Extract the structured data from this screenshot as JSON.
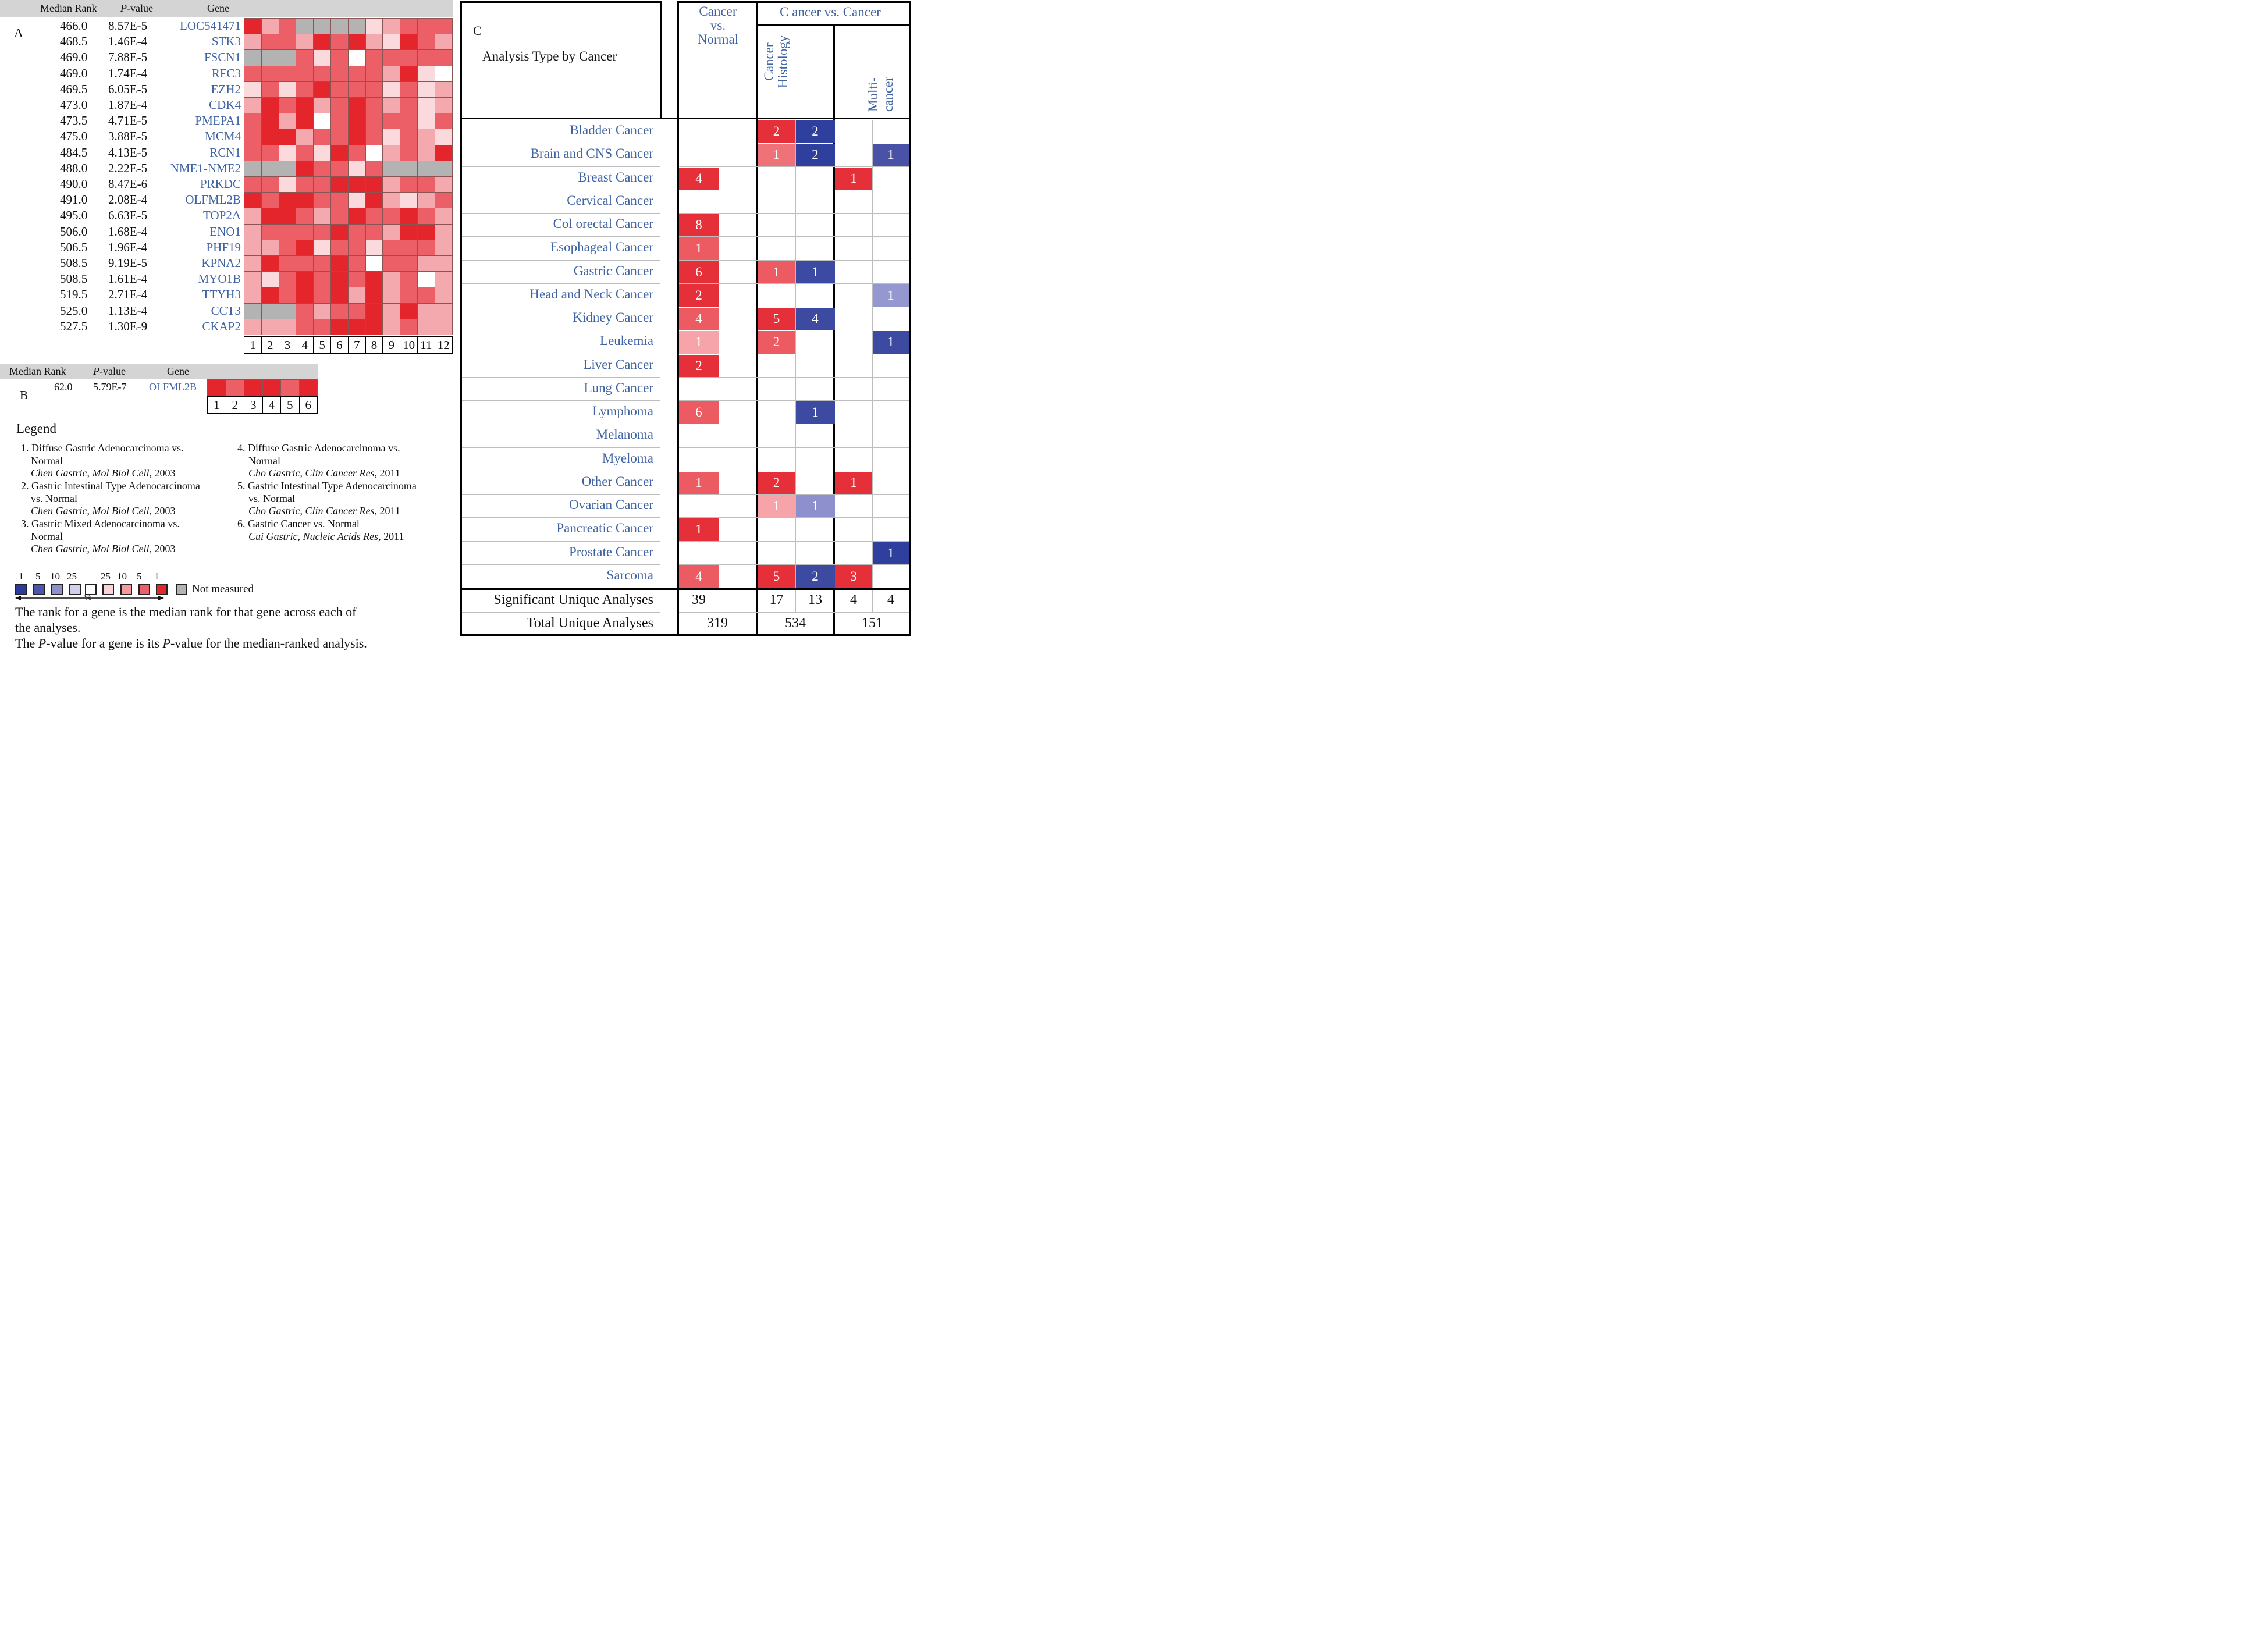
{
  "panel_a": {
    "label": "A",
    "headers": {
      "median_rank": "Median Rank",
      "p_value": "P",
      "p_value_rest": "-value",
      "gene": "Gene"
    },
    "rows": [
      {
        "rank": "466.0",
        "p": "8.57E-5",
        "gene": "LOC541471"
      },
      {
        "rank": "468.5",
        "p": "1.46E-4",
        "gene": "STK3"
      },
      {
        "rank": "469.0",
        "p": "7.88E-5",
        "gene": "FSCN1"
      },
      {
        "rank": "469.0",
        "p": "1.74E-4",
        "gene": "RFC3"
      },
      {
        "rank": "469.5",
        "p": "6.05E-5",
        "gene": "EZH2"
      },
      {
        "rank": "473.0",
        "p": "1.87E-4",
        "gene": "CDK4"
      },
      {
        "rank": "473.5",
        "p": "4.71E-5",
        "gene": "PMEPA1"
      },
      {
        "rank": "475.0",
        "p": "3.88E-5",
        "gene": "MCM4"
      },
      {
        "rank": "484.5",
        "p": "4.13E-5",
        "gene": "RCN1"
      },
      {
        "rank": "488.0",
        "p": "2.22E-5",
        "gene": "NME1-NME2"
      },
      {
        "rank": "490.0",
        "p": "8.47E-6",
        "gene": "PRKDC"
      },
      {
        "rank": "491.0",
        "p": "2.08E-4",
        "gene": "OLFML2B"
      },
      {
        "rank": "495.0",
        "p": "6.63E-5",
        "gene": "TOP2A"
      },
      {
        "rank": "506.0",
        "p": "1.68E-4",
        "gene": "ENO1"
      },
      {
        "rank": "506.5",
        "p": "1.96E-4",
        "gene": "PHF19"
      },
      {
        "rank": "508.5",
        "p": "9.19E-5",
        "gene": "KPNA2"
      },
      {
        "rank": "508.5",
        "p": "1.61E-4",
        "gene": "MYO1B"
      },
      {
        "rank": "519.5",
        "p": "2.71E-4",
        "gene": "TTYH3"
      },
      {
        "rank": "525.0",
        "p": "1.13E-4",
        "gene": "CCT3"
      },
      {
        "rank": "527.5",
        "p": "1.30E-9",
        "gene": "CKAP2"
      }
    ],
    "column_numbers": [
      "1",
      "2",
      "3",
      "4",
      "5",
      "6",
      "7",
      "8",
      "9",
      "10",
      "11",
      "12"
    ],
    "heatmap_levels_note": "level scale: 0=not measured (gray), 1=white, 2=very light, 3=light, 4=medium, 5=strong red",
    "heatmap": [
      [
        5,
        3,
        4,
        0,
        0,
        0,
        0,
        2,
        3,
        4,
        4,
        4
      ],
      [
        3,
        4,
        4,
        3,
        5,
        4,
        5,
        3,
        2,
        5,
        4,
        3
      ],
      [
        0,
        0,
        0,
        4,
        2,
        4,
        1,
        4,
        4,
        4,
        4,
        4
      ],
      [
        4,
        4,
        4,
        4,
        4,
        4,
        4,
        4,
        3,
        5,
        2,
        1
      ],
      [
        2,
        4,
        2,
        4,
        5,
        4,
        4,
        4,
        2,
        4,
        2,
        3
      ],
      [
        3,
        5,
        4,
        5,
        3,
        4,
        5,
        4,
        3,
        4,
        2,
        3
      ],
      [
        4,
        5,
        3,
        5,
        1,
        4,
        5,
        4,
        4,
        4,
        2,
        4
      ],
      [
        4,
        5,
        5,
        3,
        4,
        4,
        5,
        4,
        2,
        4,
        3,
        2
      ],
      [
        4,
        4,
        2,
        4,
        2,
        5,
        4,
        1,
        3,
        4,
        3,
        5
      ],
      [
        0,
        0,
        0,
        5,
        4,
        4,
        2,
        4,
        0,
        0,
        0,
        0
      ],
      [
        4,
        4,
        2,
        4,
        4,
        5,
        5,
        5,
        3,
        4,
        4,
        3
      ],
      [
        5,
        4,
        5,
        5,
        4,
        4,
        2,
        5,
        3,
        2,
        3,
        4
      ],
      [
        3,
        5,
        5,
        4,
        3,
        4,
        5,
        4,
        4,
        5,
        4,
        3
      ],
      [
        3,
        4,
        4,
        4,
        4,
        5,
        4,
        4,
        3,
        5,
        5,
        3
      ],
      [
        3,
        3,
        4,
        5,
        2,
        4,
        4,
        2,
        4,
        4,
        4,
        3
      ],
      [
        3,
        5,
        4,
        4,
        4,
        5,
        4,
        1,
        4,
        4,
        3,
        3
      ],
      [
        3,
        2,
        4,
        5,
        4,
        5,
        4,
        5,
        3,
        4,
        1,
        3
      ],
      [
        3,
        5,
        4,
        5,
        4,
        5,
        3,
        5,
        3,
        4,
        4,
        3
      ],
      [
        0,
        0,
        0,
        4,
        3,
        4,
        4,
        5,
        3,
        5,
        3,
        3
      ],
      [
        3,
        3,
        3,
        4,
        4,
        5,
        5,
        5,
        3,
        4,
        3,
        3
      ]
    ]
  },
  "panel_b": {
    "label": "B",
    "headers": {
      "median_rank": "Median Rank",
      "p_value": "P",
      "p_value_rest": "-value",
      "gene": "Gene"
    },
    "row": {
      "rank": "62.0",
      "p": "5.79E-7",
      "gene": "OLFML2B"
    },
    "heatmap": [
      5,
      4,
      5,
      5,
      4,
      5
    ],
    "column_numbers": [
      "1",
      "2",
      "3",
      "4",
      "5",
      "6"
    ]
  },
  "legend": {
    "title": "Legend",
    "items_left": [
      {
        "line1": "1. Diffuse Gastric Adenocarcinoma vs.",
        "line2": "Normal",
        "cite_i": "Chen Gastric, Mol Biol Cell,",
        "year": " 2003"
      },
      {
        "line1": "2. Gastric Intestinal Type Adenocarcinoma",
        "line2": "vs. Normal",
        "cite_i": "Chen Gastric, Mol Biol Cell,",
        "year": " 2003"
      },
      {
        "line1": "3. Gastric Mixed Adenocarcinoma vs.",
        "line2": "Normal",
        "cite_i": "Chen Gastric, Mol Biol Cell,",
        "year": " 2003"
      }
    ],
    "items_right": [
      {
        "line1": "4. Diffuse Gastric Adenocarcinoma vs.",
        "line2": "Normal",
        "cite_i": "Cho Gastric, Clin Cancer Res,",
        "year": " 2011"
      },
      {
        "line1": "5. Gastric Intestinal Type Adenocarcinoma",
        "line2": "vs. Normal",
        "cite_i": "Cho Gastric, Clin Cancer Res,",
        "year": " 2011"
      },
      {
        "line1": "6. Gastric Cancer vs. Normal",
        "line2": "",
        "cite_i": "Cui Gastric, Nucleic Acids Res,",
        "year": " 2011"
      }
    ],
    "scale_labels": [
      "1",
      "5",
      "10",
      "25",
      "25",
      "10",
      "5",
      "1"
    ],
    "scale_colors": [
      "#2c3a9e",
      "#4a55ad",
      "#8d90cc",
      "#d0d0ec",
      "#ffffff",
      "#f9d3d6",
      "#f49a9f",
      "#ec6068",
      "#e5252c"
    ],
    "not_measured_color": "#b3b3b3",
    "not_measured": "Not measured",
    "percent": "%",
    "note1": "The rank for a gene is the median rank for that gene across each of",
    "note2": "the analyses.",
    "note3_pre": "The ",
    "note3_i": "P",
    "note3_post": "-value for a gene is its ",
    "note3_i2": "P",
    "note3_end": "-value for the median-ranked analysis."
  },
  "panel_c": {
    "label": "C",
    "title": "Analysis Type by Cancer",
    "col_group1": {
      "line1": "Cancer",
      "line2": "vs.",
      "line3": "Normal"
    },
    "col_group2": "C ancer vs. Cancer",
    "sub_histology": {
      "line1": "Cancer",
      "line2": "Histology"
    },
    "sub_multi": "Multi-cancer",
    "cancers": [
      "Bladder Cancer",
      "Brain and CNS Cancer",
      "Breast Cancer",
      "Cervical Cancer",
      "Col orectal Cancer",
      "Esophageal Cancer",
      "Gastric Cancer",
      "Head and Neck Cancer",
      "Kidney Cancer",
      "Leukemia",
      "Liver Cancer",
      "Lung Cancer",
      "Lymphoma",
      "Melanoma",
      "Myeloma",
      "Other Cancer",
      "Ovarian Cancer",
      "Pancreatic Cancer",
      "Prostate Cancer",
      "Sarcoma"
    ],
    "cells_note": "each cell: [value, color]; empty string means blank",
    "cells": [
      [
        [
          "",
          ""
        ],
        [
          "",
          ""
        ],
        [
          "2",
          "#e5303a"
        ],
        [
          "2",
          "#2f3f9d"
        ],
        [
          "",
          ""
        ],
        [
          "",
          ""
        ]
      ],
      [
        [
          "",
          ""
        ],
        [
          "",
          ""
        ],
        [
          "1",
          "#ef7279"
        ],
        [
          "2",
          "#2f3f9d"
        ],
        [
          "",
          ""
        ],
        [
          "1",
          "#4a52a8"
        ]
      ],
      [
        [
          "4",
          "#e5303a"
        ],
        [
          "",
          ""
        ],
        [
          "",
          ""
        ],
        [
          "",
          ""
        ],
        [
          "1",
          "#e5303a"
        ],
        [
          "",
          ""
        ]
      ],
      [
        [
          "",
          ""
        ],
        [
          "",
          ""
        ],
        [
          "",
          ""
        ],
        [
          "",
          ""
        ],
        [
          "",
          ""
        ],
        [
          "",
          ""
        ]
      ],
      [
        [
          "8",
          "#e5303a"
        ],
        [
          "",
          ""
        ],
        [
          "",
          ""
        ],
        [
          "",
          ""
        ],
        [
          "",
          ""
        ],
        [
          "",
          ""
        ]
      ],
      [
        [
          "1",
          "#ec5a62"
        ],
        [
          "",
          ""
        ],
        [
          "",
          ""
        ],
        [
          "",
          ""
        ],
        [
          "",
          ""
        ],
        [
          "",
          ""
        ]
      ],
      [
        [
          "6",
          "#e5303a"
        ],
        [
          "",
          ""
        ],
        [
          "1",
          "#ec5a62"
        ],
        [
          "1",
          "#3d4aa2"
        ],
        [
          "",
          ""
        ],
        [
          "",
          ""
        ]
      ],
      [
        [
          "2",
          "#e5303a"
        ],
        [
          "",
          ""
        ],
        [
          "",
          ""
        ],
        [
          "",
          ""
        ],
        [
          "",
          ""
        ],
        [
          "1",
          "#9598cf"
        ]
      ],
      [
        [
          "4",
          "#ec5a62"
        ],
        [
          "",
          ""
        ],
        [
          "5",
          "#e5303a"
        ],
        [
          "4",
          "#3d4aa2"
        ],
        [
          "",
          ""
        ],
        [
          "",
          ""
        ]
      ],
      [
        [
          "1",
          "#f6a4a9"
        ],
        [
          "",
          ""
        ],
        [
          "2",
          "#ec5a62"
        ],
        [
          "",
          ""
        ],
        [
          "",
          ""
        ],
        [
          "1",
          "#3d4aa2"
        ]
      ],
      [
        [
          "2",
          "#e5303a"
        ],
        [
          "",
          ""
        ],
        [
          "",
          ""
        ],
        [
          "",
          ""
        ],
        [
          "",
          ""
        ],
        [
          "",
          ""
        ]
      ],
      [
        [
          "",
          ""
        ],
        [
          "",
          ""
        ],
        [
          "",
          ""
        ],
        [
          "",
          ""
        ],
        [
          "",
          ""
        ],
        [
          "",
          ""
        ]
      ],
      [
        [
          "6",
          "#ec5a62"
        ],
        [
          "",
          ""
        ],
        [
          "",
          ""
        ],
        [
          "1",
          "#3d4aa2"
        ],
        [
          "",
          ""
        ],
        [
          "",
          ""
        ]
      ],
      [
        [
          "",
          ""
        ],
        [
          "",
          ""
        ],
        [
          "",
          ""
        ],
        [
          "",
          ""
        ],
        [
          "",
          ""
        ],
        [
          "",
          ""
        ]
      ],
      [
        [
          "",
          ""
        ],
        [
          "",
          ""
        ],
        [
          "",
          ""
        ],
        [
          "",
          ""
        ],
        [
          "",
          ""
        ],
        [
          "",
          ""
        ]
      ],
      [
        [
          "1",
          "#ec5a62"
        ],
        [
          "",
          ""
        ],
        [
          "2",
          "#e5303a"
        ],
        [
          "",
          ""
        ],
        [
          "1",
          "#e5303a"
        ],
        [
          "",
          ""
        ]
      ],
      [
        [
          "",
          ""
        ],
        [
          "",
          ""
        ],
        [
          "1",
          "#f6a4a9"
        ],
        [
          "1",
          "#8d90cc"
        ],
        [
          "",
          ""
        ],
        [
          "",
          ""
        ]
      ],
      [
        [
          "1",
          "#e5303a"
        ],
        [
          "",
          ""
        ],
        [
          "",
          ""
        ],
        [
          "",
          ""
        ],
        [
          "",
          ""
        ],
        [
          "",
          ""
        ]
      ],
      [
        [
          "",
          ""
        ],
        [
          "",
          ""
        ],
        [
          "",
          ""
        ],
        [
          "",
          ""
        ],
        [
          "",
          ""
        ],
        [
          "1",
          "#2f3f9d"
        ]
      ],
      [
        [
          "4",
          "#ec5a62"
        ],
        [
          "",
          ""
        ],
        [
          "5",
          "#e5303a"
        ],
        [
          "2",
          "#3d4aa2"
        ],
        [
          "3",
          "#e5303a"
        ],
        [
          "",
          ""
        ]
      ]
    ],
    "significant_label": "Significant Unique Analyses",
    "significant": [
      "39",
      "",
      "17",
      "13",
      "4",
      "4"
    ],
    "total_label": "Total Unique Analyses",
    "total": [
      "319",
      "534",
      "151"
    ]
  }
}
